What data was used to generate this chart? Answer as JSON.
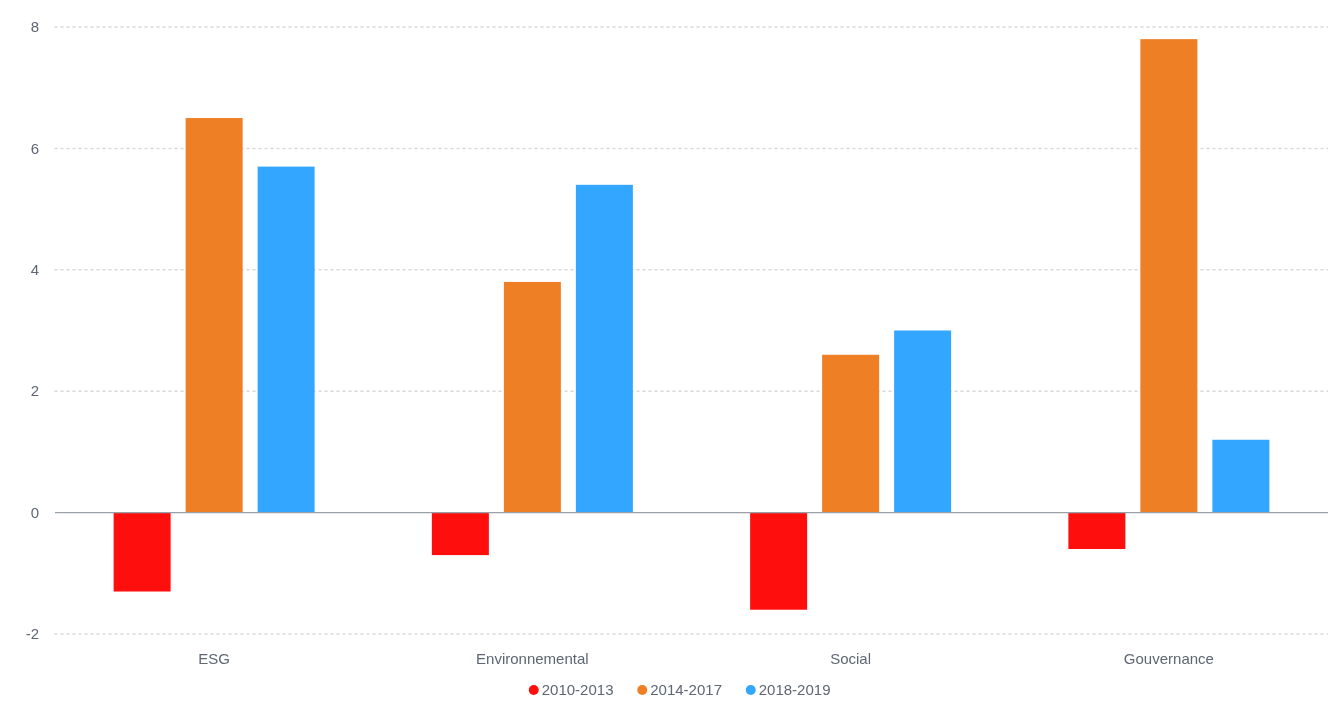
{
  "chart_data": {
    "type": "bar",
    "categories": [
      "ESG",
      "Environnemental",
      "Social",
      "Gouvernance"
    ],
    "series": [
      {
        "name": "2010-2013",
        "color": "#ff0e0e",
        "values": [
          -1.3,
          -0.7,
          -1.6,
          -0.6
        ]
      },
      {
        "name": "2014-2017",
        "color": "#ee7f24",
        "values": [
          6.5,
          3.8,
          2.6,
          7.8
        ]
      },
      {
        "name": "2018-2019",
        "color": "#33a6ff",
        "values": [
          5.7,
          5.4,
          3.0,
          1.2
        ]
      }
    ],
    "ylim": [
      -2,
      8
    ],
    "yticks": [
      -2,
      0,
      2,
      4,
      6,
      8
    ],
    "grid": "y",
    "legend": "bottom"
  }
}
